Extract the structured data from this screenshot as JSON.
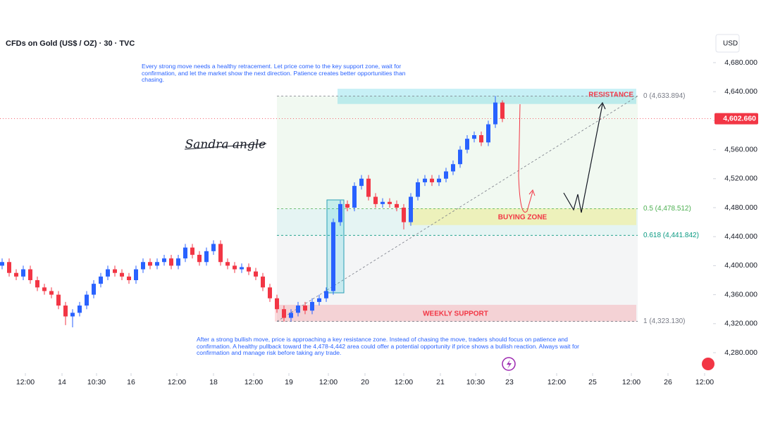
{
  "chart_data": {
    "type": "candlestick",
    "title": "CFDs on Gold (US$ / OZ) · 30 · TVC",
    "currency": "USD",
    "signature": "Sandra angle",
    "note_top": "Every strong move needs a healthy retracement. Let price come to the key support zone, wait for confirmation, and let the market show the next direction. Patience creates better opportunities than chasing.",
    "note_bottom": "After a strong bullish move, price is approaching a key resistance zone. Instead of chasing the move, traders should focus on patience and confirmation. A healthy pullback toward the 4,478-4,442 area could offer a potential opportunity if price shows a bullish reaction. Always wait for confirmation and manage risk before taking any trade.",
    "up_color": "#2962ff",
    "down_color": "#f23645",
    "opens": [
      4400,
      4405,
      4390,
      4385,
      4395,
      4380,
      4370,
      4365,
      4360,
      4345,
      4330,
      4335,
      4345,
      4360,
      4375,
      4385,
      4395,
      4390,
      4385,
      4380,
      4395,
      4405,
      4400,
      4405,
      4410,
      4400,
      4410,
      4425,
      4415,
      4405,
      4420,
      4430,
      4405,
      4400,
      4395,
      4398,
      4392,
      4385,
      4370,
      4355,
      4340,
      4328,
      4335,
      4345,
      4338,
      4350,
      4355,
      4365,
      4460,
      4485,
      4480,
      4510,
      4520,
      4495,
      4485,
      4488,
      4485,
      4480,
      4460,
      4495,
      4515,
      4520,
      4515,
      4520,
      4530,
      4540,
      4560,
      4575,
      4580,
      4570,
      4595,
      4625
    ],
    "highs": [
      4410,
      4410,
      4395,
      4400,
      4400,
      4385,
      4375,
      4370,
      4365,
      4350,
      4340,
      4350,
      4365,
      4380,
      4390,
      4400,
      4400,
      4395,
      4390,
      4400,
      4410,
      4410,
      4410,
      4415,
      4415,
      4415,
      4430,
      4430,
      4420,
      4425,
      4435,
      4435,
      4410,
      4405,
      4403,
      4403,
      4397,
      4390,
      4375,
      4360,
      4345,
      4340,
      4350,
      4350,
      4355,
      4360,
      4370,
      4465,
      4490,
      4490,
      4515,
      4525,
      4525,
      4500,
      4493,
      4493,
      4490,
      4485,
      4500,
      4520,
      4525,
      4525,
      4525,
      4535,
      4545,
      4565,
      4580,
      4585,
      4585,
      4600,
      4634,
      4628
    ],
    "lows": [
      4395,
      4385,
      4380,
      4380,
      4375,
      4365,
      4360,
      4355,
      4340,
      4318,
      4315,
      4330,
      4340,
      4355,
      4370,
      4380,
      4385,
      4380,
      4375,
      4375,
      4390,
      4395,
      4395,
      4400,
      4395,
      4395,
      4405,
      4410,
      4400,
      4400,
      4415,
      4400,
      4395,
      4390,
      4390,
      4387,
      4380,
      4365,
      4350,
      4335,
      4323,
      4323,
      4330,
      4333,
      4333,
      4345,
      4350,
      4360,
      4455,
      4475,
      4475,
      4505,
      4490,
      4480,
      4480,
      4480,
      4475,
      4450,
      4455,
      4490,
      4510,
      4510,
      4510,
      4515,
      4525,
      4535,
      4555,
      4570,
      4565,
      4565,
      4590,
      4598
    ],
    "closes": [
      4405,
      4390,
      4385,
      4395,
      4380,
      4370,
      4365,
      4360,
      4345,
      4330,
      4335,
      4345,
      4360,
      4375,
      4385,
      4395,
      4390,
      4385,
      4380,
      4395,
      4405,
      4400,
      4405,
      4410,
      4400,
      4410,
      4425,
      4415,
      4405,
      4420,
      4430,
      4405,
      4400,
      4395,
      4398,
      4392,
      4385,
      4370,
      4355,
      4340,
      4328,
      4335,
      4345,
      4338,
      4350,
      4355,
      4365,
      4460,
      4485,
      4480,
      4510,
      4520,
      4495,
      4485,
      4488,
      4485,
      4480,
      4460,
      4495,
      4515,
      4520,
      4515,
      4520,
      4530,
      4540,
      4560,
      4575,
      4580,
      4570,
      4595,
      4625,
      4602.66
    ],
    "xlim": [
      0,
      100
    ],
    "xticks": [
      {
        "value": 3.3,
        "label": "12:00"
      },
      {
        "value": 8.5,
        "label": "14"
      },
      {
        "value": 13.4,
        "label": "10:30"
      },
      {
        "value": 18.3,
        "label": "16"
      },
      {
        "value": 24.8,
        "label": "12:00"
      },
      {
        "value": 30,
        "label": "18"
      },
      {
        "value": 35.7,
        "label": "12:00"
      },
      {
        "value": 40.7,
        "label": "19"
      },
      {
        "value": 46.3,
        "label": "12:00"
      },
      {
        "value": 51.5,
        "label": "20"
      },
      {
        "value": 57,
        "label": "12:00"
      },
      {
        "value": 62.2,
        "label": "21"
      },
      {
        "value": 67.2,
        "label": "10:30"
      },
      {
        "value": 72,
        "label": "23"
      },
      {
        "value": 78.7,
        "label": "12:00"
      },
      {
        "value": 83.8,
        "label": "25"
      },
      {
        "value": 89.3,
        "label": "12:00"
      },
      {
        "value": 94.5,
        "label": "26"
      },
      {
        "value": 99.7,
        "label": "12:00"
      }
    ],
    "ylim": [
      4280,
      4680
    ],
    "yticks": [
      {
        "value": 4280,
        "label": "4,280.000"
      },
      {
        "value": 4320,
        "label": "4,320.000"
      },
      {
        "value": 4360,
        "label": "4,360.000"
      },
      {
        "value": 4400,
        "label": "4,400.000"
      },
      {
        "value": 4440,
        "label": "4,440.000"
      },
      {
        "value": 4480,
        "label": "4,480.000"
      },
      {
        "value": 4520,
        "label": "4,520.000"
      },
      {
        "value": 4560,
        "label": "4,560.000"
      },
      {
        "value": 4600,
        "label": "4,600.000"
      },
      {
        "value": 4640,
        "label": "4,640.000"
      },
      {
        "value": 4680,
        "label": "4,680.000"
      }
    ],
    "last_price": {
      "value": 4602.66,
      "label": "4,602.660"
    },
    "fib_levels": [
      {
        "value": 4633.894,
        "label": "0 (4,633.894)",
        "color": "#787b86"
      },
      {
        "value": 4478.512,
        "label": "0.5 (4,478.512)",
        "color": "#4caf50"
      },
      {
        "value": 4441.842,
        "label": "0.618 (4,441.842)",
        "color": "#089981"
      },
      {
        "value": 4323.13,
        "label": "1 (4,323.130)",
        "color": "#787b86"
      }
    ],
    "zones": [
      {
        "label": "RESISTANCE",
        "ylim": [
          4623,
          4644
        ],
        "xlim": [
          47.6,
          90
        ],
        "color": "rgba(0,188,212,0.22)"
      },
      {
        "label": "BUYING ZONE",
        "ylim": [
          4456,
          4479
        ],
        "xlim": [
          57.7,
          90
        ],
        "color": "rgba(255,235,59,0.3)"
      },
      {
        "label": "WEEKLY SUPPORT",
        "ylim": [
          4323,
          4346
        ],
        "xlim": [
          38.7,
          90
        ],
        "color": "rgba(242,54,69,0.18)"
      }
    ]
  }
}
